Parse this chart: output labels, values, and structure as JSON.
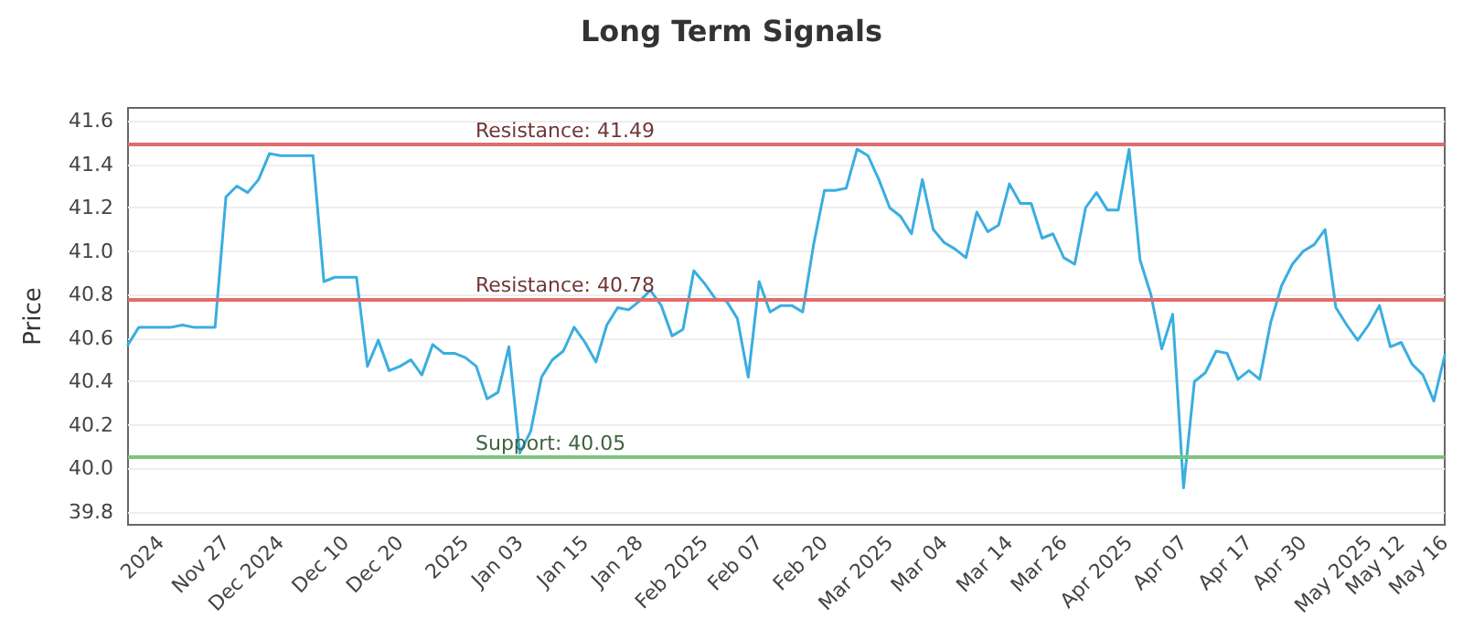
{
  "chart_data": {
    "type": "line",
    "title": "Long Term Signals",
    "ylabel": "Price",
    "categories": [
      null,
      null,
      null,
      "2024",
      null,
      null,
      null,
      null,
      null,
      "Nov 27",
      null,
      null,
      null,
      null,
      "Dec 2024",
      null,
      null,
      null,
      null,
      null,
      "Dec 10",
      null,
      null,
      null,
      null,
      "Dec 20",
      null,
      null,
      null,
      null,
      null,
      "2025",
      null,
      null,
      null,
      null,
      "Jan 03",
      null,
      null,
      null,
      null,
      null,
      "Jan 15",
      null,
      null,
      null,
      null,
      "Jan 28",
      null,
      null,
      null,
      null,
      null,
      "Feb 2025",
      null,
      null,
      null,
      null,
      "Feb 07",
      null,
      null,
      null,
      null,
      null,
      "Feb 20",
      null,
      null,
      null,
      null,
      null,
      "Mar 2025",
      null,
      null,
      null,
      null,
      "Mar 04",
      null,
      null,
      null,
      null,
      null,
      "Mar 14",
      null,
      null,
      null,
      null,
      "Mar 26",
      null,
      null,
      null,
      null,
      null,
      "Apr 2025",
      null,
      null,
      null,
      null,
      "Apr 07",
      null,
      null,
      null,
      null,
      null,
      "Apr 17",
      null,
      null,
      null,
      null,
      "Apr 30",
      null,
      null,
      null,
      null,
      null,
      "May 2025",
      null,
      null,
      "May 12",
      null,
      null,
      null,
      "May 16"
    ],
    "series": [
      {
        "color": "#3aaee0",
        "values": [
          40.57,
          40.65,
          40.65,
          40.65,
          40.65,
          40.66,
          40.65,
          40.65,
          40.65,
          41.25,
          41.3,
          41.27,
          41.33,
          41.45,
          41.44,
          41.44,
          41.44,
          41.44,
          40.86,
          40.88,
          40.88,
          40.88,
          40.47,
          40.59,
          40.45,
          40.47,
          40.5,
          40.43,
          40.57,
          40.53,
          40.53,
          40.51,
          40.47,
          40.32,
          40.35,
          40.56,
          40.07,
          40.17,
          40.42,
          40.5,
          40.54,
          40.65,
          40.58,
          40.49,
          40.66,
          40.74,
          40.73,
          40.77,
          40.82,
          40.75,
          40.61,
          40.64,
          40.91,
          40.85,
          40.78,
          40.77,
          40.69,
          40.42,
          40.86,
          40.72,
          40.75,
          40.75,
          40.72,
          41.03,
          41.28,
          41.28,
          41.29,
          41.47,
          41.44,
          41.33,
          41.2,
          41.16,
          41.08,
          41.33,
          41.1,
          41.04,
          41.01,
          40.97,
          41.18,
          41.09,
          41.12,
          41.31,
          41.22,
          41.22,
          41.06,
          41.08,
          40.97,
          40.94,
          41.2,
          41.27,
          41.19,
          41.19,
          41.47,
          40.96,
          40.8,
          40.55,
          40.71,
          39.91,
          40.4,
          40.44,
          40.54,
          40.53,
          40.41,
          40.45,
          40.41,
          40.67,
          40.84,
          40.94,
          41.0,
          41.03,
          41.1,
          40.74,
          40.66,
          40.59,
          40.66,
          40.75,
          40.56,
          40.58,
          40.48,
          40.43,
          40.31,
          40.52
        ]
      }
    ],
    "ylim": [
      39.74,
      41.66
    ],
    "yticks": [
      39.8,
      {
        "value": 40,
        "label": "40.0"
      },
      40.2,
      40.4,
      40.6,
      40.8,
      {
        "value": 41,
        "label": "41.0"
      },
      41.2,
      41.4,
      41.6
    ],
    "ref_lines": [
      {
        "axis": "y",
        "value": 41.49,
        "label": "Resistance: 41.49",
        "color": "#e06c6c"
      },
      {
        "axis": "y",
        "value": 40.78,
        "label": "Resistance: 40.78",
        "color": "#e06c6c"
      },
      {
        "axis": "y",
        "value": 40.05,
        "label": "Support: 40.05",
        "color": "#7cc47c"
      }
    ],
    "grid": "y",
    "marker": "none",
    "line_style": "solid"
  }
}
